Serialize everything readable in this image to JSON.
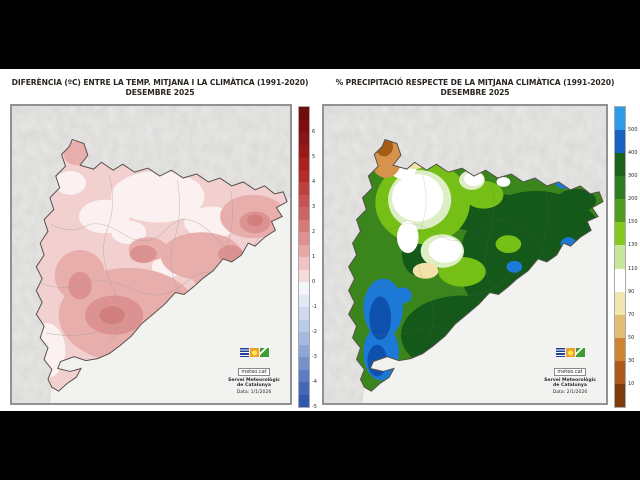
{
  "window": {
    "background": "#000000",
    "canvas_background": "#ffffff"
  },
  "left_panel": {
    "title": "DIFERÈNCIA (ºC) ENTRE LA TEMP. MITJANA I LA CLIMÀTICA (1991-2020)",
    "subtitle": "DESEMBRE 2025",
    "colorbar": {
      "ticks": [
        "6",
        "5",
        "4",
        "3",
        "2",
        "1",
        "0",
        "-1",
        "-2",
        "-3",
        "-4",
        "-5"
      ],
      "segment_colors": [
        "#6f0c0c",
        "#7e0f0f",
        "#8d1414",
        "#9b1818",
        "#a92121",
        "#b42c2c",
        "#c03f3f",
        "#c85151",
        "#d06363",
        "#d87a7a",
        "#e09090",
        "#e8a8a8",
        "#f0c2c2",
        "#f7dada",
        "#f2f5fb",
        "#e2e9f5",
        "#cfdaef",
        "#bccbe8",
        "#a6b9e0",
        "#8fa6d7",
        "#7791cd",
        "#5e7cc3",
        "#4667b8",
        "#3156ae"
      ]
    },
    "credit": {
      "brand": "meteo.cat",
      "org_line1": "Servei Meteorològic",
      "org_line2": "de Catalunya",
      "date": "Data: 1/1/2026"
    }
  },
  "right_panel": {
    "title": "% PRECIPITACIÓ RESPECTE DE LA MITJANA CLIMÀTICA (1991-2020)",
    "subtitle": "DESEMBRE 2025",
    "colorbar": {
      "ticks": [
        "500",
        "400",
        "300",
        "200",
        "150",
        "130",
        "110",
        "90",
        "70",
        "50",
        "30",
        "10"
      ],
      "segment_colors": [
        "#2e9be8",
        "#1663c4",
        "#1c641c",
        "#2f7d21",
        "#4f9c1e",
        "#84c81e",
        "#c6e89a",
        "#ffffff",
        "#f1e7ae",
        "#e0bd72",
        "#cc8633",
        "#ad5a1a",
        "#7e3c0d"
      ]
    },
    "credit": {
      "brand": "meteo.cat",
      "org_line1": "Servei Meteorològic",
      "org_line2": "de Catalunya",
      "date": "Data: 2/1/2026"
    }
  },
  "map_palette": {
    "terrain": "#e9e9e7",
    "sea": "#f2f2f0",
    "region_border": "#55504a",
    "left": {
      "base": "#f2d0cf",
      "pale": "#fbf1f0",
      "medium": "#e7aeac",
      "dark": "#dc9290",
      "deep": "#d07f7d"
    },
    "right": {
      "base": "#3a861c",
      "dark_green": "#14591a",
      "light_green": "#76bf17",
      "pale_green": "#ddeec4",
      "white_zone": "#ffffff",
      "pale_yellow": "#f0e2a8",
      "tan": "#e8c87e",
      "orange": "#d6934c",
      "brown": "#a55c15",
      "blue": "#1d79d8",
      "dark_blue": "#0f52ad"
    }
  }
}
